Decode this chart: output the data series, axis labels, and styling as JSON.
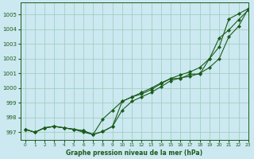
{
  "xlabel": "Graphe pression niveau de la mer (hPa)",
  "xlim": [
    -0.5,
    23
  ],
  "ylim": [
    996.5,
    1005.8
  ],
  "yticks": [
    997,
    998,
    999,
    1000,
    1001,
    1002,
    1003,
    1004,
    1005
  ],
  "xticks": [
    0,
    1,
    2,
    3,
    4,
    5,
    6,
    7,
    8,
    9,
    10,
    11,
    12,
    13,
    14,
    15,
    16,
    17,
    18,
    19,
    20,
    21,
    22,
    23
  ],
  "bg_color": "#cce8f0",
  "grid_color": "#99ccbb",
  "line_color": "#1a5c1a",
  "line1_x": [
    0,
    1,
    2,
    3,
    4,
    5,
    6,
    7,
    8,
    9,
    10,
    11,
    12,
    13,
    14,
    15,
    16,
    17,
    18,
    19,
    20,
    21,
    22,
    23
  ],
  "line1": [
    997.2,
    997.0,
    997.3,
    997.4,
    997.3,
    997.2,
    997.1,
    996.85,
    997.05,
    997.4,
    998.5,
    999.1,
    999.4,
    999.7,
    1000.1,
    1000.5,
    1000.7,
    1000.8,
    1001.0,
    1001.4,
    1002.0,
    1003.5,
    1004.2,
    1005.4
  ],
  "line2_x": [
    0,
    1,
    2,
    3,
    4,
    5,
    6,
    7,
    8,
    9,
    10,
    11,
    12,
    13,
    14,
    15,
    16,
    17,
    18,
    19,
    20,
    21,
    22,
    23
  ],
  "line2": [
    997.2,
    997.0,
    997.3,
    997.4,
    997.3,
    997.2,
    997.1,
    996.85,
    997.9,
    998.5,
    999.1,
    999.4,
    999.6,
    999.9,
    1000.3,
    1000.65,
    1000.9,
    1001.1,
    1001.4,
    1002.0,
    1002.8,
    1004.7,
    1005.05,
    1005.4
  ],
  "line3_x": [
    0,
    1,
    2,
    3,
    4,
    5,
    6,
    7,
    8,
    9,
    10,
    11,
    12,
    13,
    14,
    15,
    16,
    17,
    18,
    19,
    20,
    21,
    22,
    23
  ],
  "line3": [
    997.2,
    997.0,
    997.3,
    997.4,
    997.3,
    997.2,
    997.0,
    996.85,
    997.05,
    997.4,
    999.1,
    999.4,
    999.7,
    1000.0,
    1000.35,
    1000.65,
    1000.65,
    1000.95,
    1000.95,
    1002.0,
    1003.4,
    1003.95,
    1004.65,
    1005.3
  ]
}
